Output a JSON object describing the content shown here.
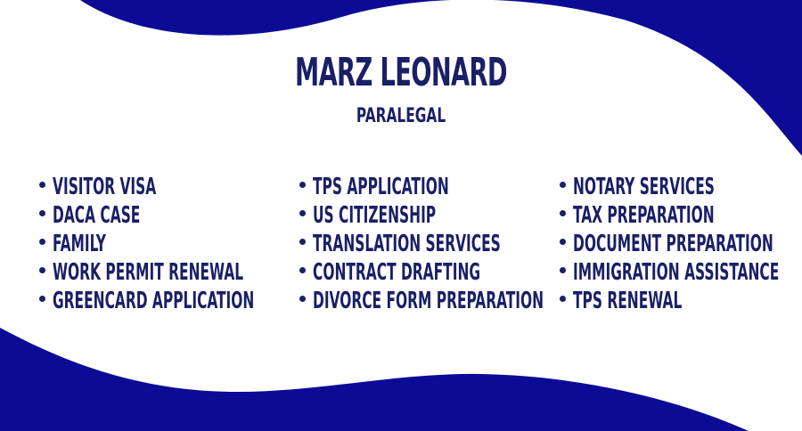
{
  "name": "MARZ LEONARD",
  "title": "PARALEGAL",
  "colors": {
    "navy": "#0b0b96",
    "text": "#1a1f66",
    "background": "#ffffff"
  },
  "services": {
    "column1": [
      "VISITOR VISA",
      "DACA CASE",
      "FAMILY",
      "WORK PERMIT RENEWAL",
      "GREENCARD APPLICATION"
    ],
    "column2": [
      "TPS APPLICATION",
      "US CITIZENSHIP",
      "TRANSLATION SERVICES",
      "CONTRACT DRAFTING",
      "DIVORCE FORM PREPARATION"
    ],
    "column3": [
      "NOTARY SERVICES",
      "TAX PREPARATION",
      "DOCUMENT PREPARATION",
      "IMMIGRATION ASSISTANCE",
      "TPS RENEWAL"
    ]
  }
}
